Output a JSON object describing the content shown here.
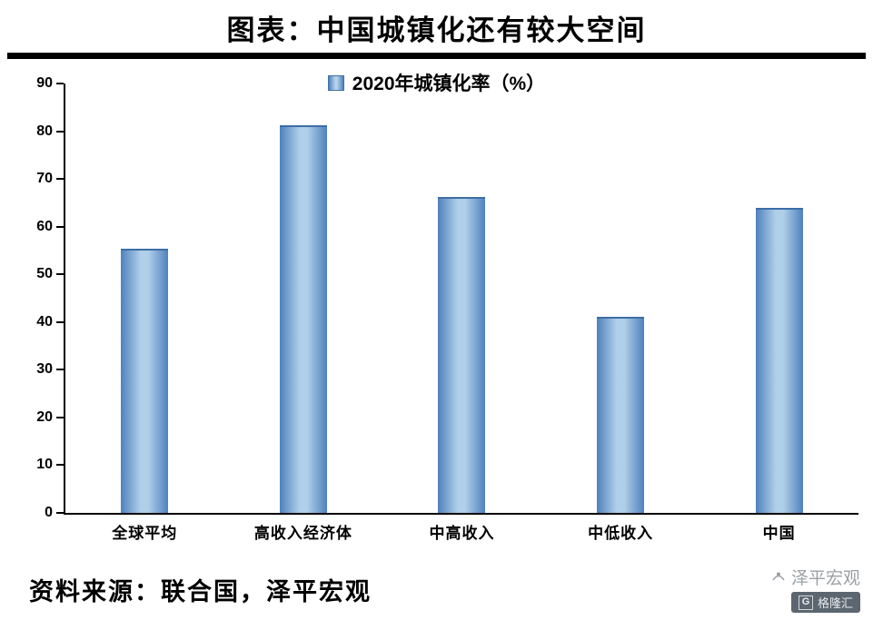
{
  "page": {
    "title": "图表：中国城镇化还有较大空间",
    "source_text": "资料来源：联合国，泽平宏观",
    "watermark": {
      "brand": "泽平宏观",
      "badge": "格隆汇",
      "badge_letter": "G"
    }
  },
  "chart_data": {
    "type": "bar",
    "title": "2020年城镇化率（%）",
    "legend": [
      "2020年城镇化率（%）"
    ],
    "legend_position": "top-center",
    "categories": [
      "全球平均",
      "高收入经济体",
      "中高收入",
      "中低收入",
      "中国"
    ],
    "values": [
      55.3,
      81.3,
      66.2,
      41.1,
      63.9
    ],
    "xlabel": "",
    "ylabel": "",
    "ylim": [
      0,
      90
    ],
    "ytick_step": 10,
    "yticks": [
      0,
      10,
      20,
      30,
      40,
      50,
      60,
      70,
      80,
      90
    ],
    "grid": false,
    "bar_color_edge": "#4f81bd",
    "bar_color_center": "#b0cfe9",
    "axis_color": "#000000"
  }
}
